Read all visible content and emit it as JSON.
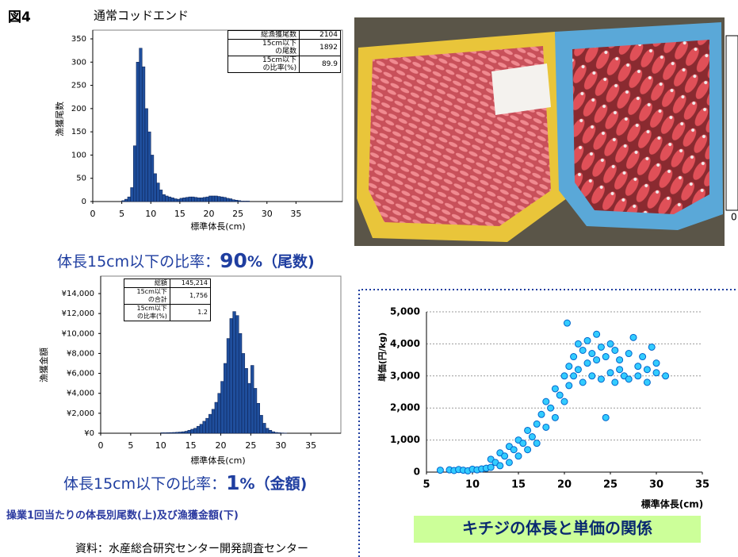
{
  "figure_label": "図4",
  "chart_data": [
    {
      "type": "histogram",
      "title": "通常コッドエンド",
      "y_label": "漁獲尾数",
      "x_label": "標準体長(cm)",
      "color": "#1f4e9c",
      "bins": [
        5,
        5.5,
        6,
        6.5,
        7,
        7.5,
        8,
        8.5,
        9,
        9.5,
        10,
        10.5,
        11,
        11.5,
        12,
        12.5,
        13,
        13.5,
        14,
        14.5,
        15,
        15.5,
        16,
        16.5,
        17,
        17.5,
        18,
        18.5,
        19,
        19.5,
        20,
        20.5,
        21,
        21.5,
        22,
        22.5,
        23,
        23.5,
        24,
        24.5,
        25,
        25.5,
        26,
        26.5,
        27
      ],
      "values": [
        2,
        5,
        10,
        30,
        120,
        300,
        330,
        290,
        200,
        150,
        100,
        60,
        40,
        25,
        15,
        12,
        10,
        8,
        6,
        5,
        7,
        8,
        9,
        10,
        10,
        9,
        8,
        8,
        9,
        10,
        12,
        12,
        12,
        11,
        10,
        9,
        7,
        6,
        4,
        3,
        2,
        1,
        1,
        1
      ],
      "xlim": [
        0,
        43
      ],
      "xticks": [
        0,
        5,
        10,
        15,
        20,
        25,
        30,
        35
      ],
      "ylim": [
        0,
        350
      ],
      "yticks": [
        0,
        50,
        100,
        150,
        200,
        250,
        300,
        350
      ],
      "grid": false,
      "table": {
        "rows": [
          [
            "総漁獲尾数",
            "2104"
          ],
          [
            "15cm以下\nの尾数",
            "1892"
          ],
          [
            "15cm以下\nの比率(%)",
            "89.9"
          ]
        ]
      },
      "caption": [
        "体長15cm以下の比率：",
        "90",
        "%（尾数)"
      ]
    },
    {
      "type": "histogram",
      "y_label": "漁獲金額",
      "x_label": "標準体長(cm)",
      "color": "#1f4e9c",
      "bins": [
        10,
        10.5,
        11,
        11.5,
        12,
        12.5,
        13,
        13.5,
        14,
        14.5,
        15,
        15.5,
        16,
        16.5,
        17,
        17.5,
        18,
        18.5,
        19,
        19.5,
        20,
        20.5,
        21,
        21.5,
        22,
        22.5,
        23,
        23.5,
        24,
        24.5,
        25,
        25.5,
        26,
        26.5,
        27,
        27.5,
        28,
        28.5,
        29,
        29.5,
        30,
        30.5,
        31
      ],
      "values": [
        50,
        50,
        60,
        70,
        80,
        100,
        120,
        150,
        200,
        300,
        400,
        500,
        700,
        900,
        1200,
        1500,
        1900,
        2400,
        3100,
        4000,
        5200,
        7000,
        9500,
        11500,
        12200,
        11800,
        10000,
        8000,
        6500,
        5000,
        6800,
        4500,
        3000,
        1800,
        1000,
        500,
        300,
        150,
        80,
        50,
        30,
        20
      ],
      "xlim": [
        0,
        40
      ],
      "xticks": [
        0,
        5,
        10,
        15,
        20,
        25,
        30,
        35
      ],
      "ylim": [
        0,
        14000
      ],
      "yticks": [
        {
          "value": 0,
          "label": "¥0"
        },
        {
          "value": 2000,
          "label": "¥2,000"
        },
        {
          "value": 4000,
          "label": "¥4,000"
        },
        {
          "value": 6000,
          "label": "¥6,000"
        },
        {
          "value": 8000,
          "label": "¥8,000"
        },
        {
          "value": 10000,
          "label": "¥10,000"
        },
        {
          "value": 12000,
          "label": "¥12,000"
        },
        {
          "value": 14000,
          "label": "¥14,000"
        }
      ],
      "grid": false,
      "table": {
        "rows": [
          [
            "総額",
            "145,214"
          ],
          [
            "15cm以下\nの合計",
            "1,756"
          ],
          [
            "15cm以下\nの比率(%)",
            "1.2"
          ]
        ]
      },
      "caption": [
        "体長15cm以下の比率：",
        "1",
        "%（金額)"
      ]
    },
    {
      "type": "scatter",
      "title": "キチジの体長と単価の関係",
      "y_label": "単価(円/kg)",
      "x_label": "標準体長(cm)",
      "color": "#33ccff",
      "grid": true,
      "x": [
        6.5,
        7.5,
        8,
        8.5,
        9,
        9.5,
        10,
        10.5,
        11,
        11.5,
        12,
        12,
        12.5,
        13,
        13,
        13.5,
        14,
        14,
        14.5,
        15,
        15,
        15.5,
        16,
        16,
        16.5,
        17,
        17,
        17.5,
        18,
        18,
        18.5,
        19,
        19,
        19.5,
        20,
        20,
        20.5,
        20.5,
        21,
        21,
        21.5,
        21.5,
        22,
        22,
        22.5,
        22.5,
        23,
        23,
        23.5,
        23.5,
        24,
        24,
        24.5,
        24.5,
        25,
        25,
        25.5,
        25.5,
        26,
        26,
        26.5,
        27,
        27,
        27.5,
        28,
        28,
        28.5,
        29,
        29,
        29.5,
        30,
        30,
        31,
        20.3
      ],
      "y": [
        60,
        70,
        50,
        80,
        60,
        40,
        90,
        70,
        100,
        120,
        150,
        400,
        300,
        200,
        600,
        500,
        300,
        800,
        700,
        500,
        1000,
        900,
        700,
        1300,
        1100,
        1500,
        900,
        1800,
        1400,
        2200,
        2000,
        2600,
        1700,
        2400,
        3000,
        2200,
        3300,
        2700,
        3600,
        3000,
        4000,
        3200,
        3800,
        2800,
        4100,
        3400,
        3700,
        3000,
        4300,
        3500,
        3900,
        2900,
        1700,
        3600,
        4000,
        3100,
        3800,
        2800,
        3500,
        3200,
        3000,
        3700,
        2900,
        4200,
        3300,
        3000,
        3600,
        3200,
        2800,
        3900,
        3100,
        3400,
        3000,
        4650
      ],
      "xlim": [
        5,
        35
      ],
      "xticks": [
        5,
        10,
        15,
        20,
        25,
        30,
        35
      ],
      "ylim": [
        0,
        5000
      ],
      "yticks": [
        0,
        {
          "value": 1000,
          "label": "1,000"
        },
        {
          "value": 2000,
          "label": "2,000"
        },
        {
          "value": 3000,
          "label": "3,000"
        },
        {
          "value": 4000,
          "label": "4,000"
        },
        {
          "value": 5000,
          "label": "5,000"
        }
      ]
    }
  ],
  "photo_side_label": "0",
  "caption_bottom": "操業1回当たりの体長別尾数(上)及び漁獲金額(下)",
  "source": "資料：水産総合研究センター開発調査センター"
}
